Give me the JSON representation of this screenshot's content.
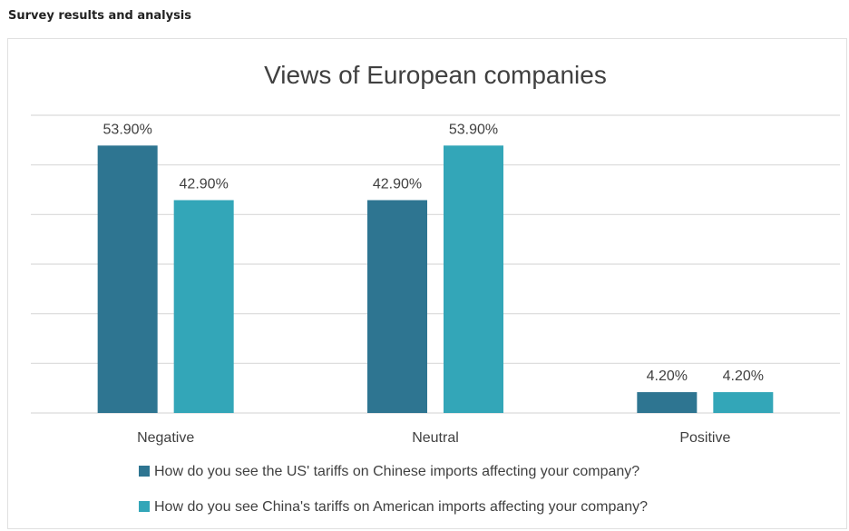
{
  "header": {
    "title": "Survey results and analysis"
  },
  "colors": {
    "series1": "#2e7591",
    "series2": "#33a6b8",
    "grid": "#d9d9d9",
    "text": "#404040"
  },
  "chart_data": {
    "type": "bar",
    "title": "Views of European companies",
    "categories": [
      "Negative",
      "Neutral",
      "Positive"
    ],
    "series": [
      {
        "name": "How do you see the US' tariffs on Chinese imports affecting your company?",
        "values": [
          53.9,
          42.9,
          4.2
        ],
        "labels": [
          "53.90%",
          "42.90%",
          "4.20%"
        ]
      },
      {
        "name": "How do you see China's tariffs on American imports affecting your company?",
        "values": [
          42.9,
          53.9,
          4.2
        ],
        "labels": [
          "42.90%",
          "53.90%",
          "4.20%"
        ]
      }
    ],
    "ylim": [
      0,
      60
    ],
    "grid": true,
    "legend": "bottom",
    "xlabel": "",
    "ylabel": ""
  }
}
